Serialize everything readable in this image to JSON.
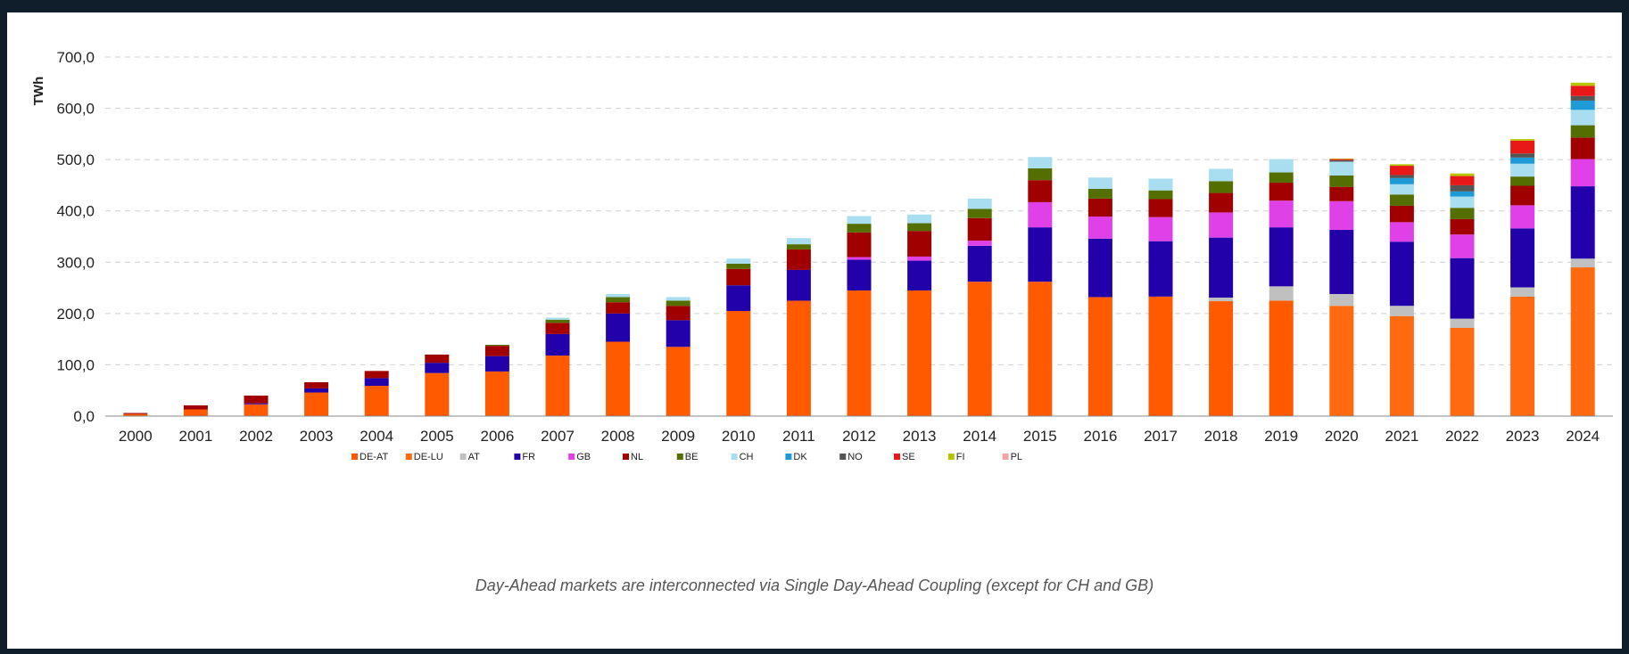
{
  "caption": "Day-Ahead markets are interconnected via Single Day-Ahead Coupling (except for CH and GB)",
  "chart_data": {
    "type": "bar",
    "stacked": true,
    "ylabel": "TWh",
    "ylim": [
      0,
      700
    ],
    "yticks": [
      "0,0",
      "100,0",
      "200,0",
      "300,0",
      "400,0",
      "500,0",
      "600,0",
      "700,0"
    ],
    "grid": true,
    "legend_position": "bottom",
    "categories": [
      "2000",
      "2001",
      "2002",
      "2003",
      "2004",
      "2005",
      "2006",
      "2007",
      "2008",
      "2009",
      "2010",
      "2011",
      "2012",
      "2013",
      "2014",
      "2015",
      "2016",
      "2017",
      "2018",
      "2019",
      "2020",
      "2021",
      "2022",
      "2023",
      "2024"
    ],
    "series": [
      {
        "name": "DE-AT",
        "color": "#ff5a00",
        "values": [
          4,
          13,
          23,
          46,
          59,
          84,
          87,
          118,
          145,
          135,
          205,
          225,
          245,
          245,
          262,
          262,
          232,
          233,
          224,
          225,
          0,
          0,
          0,
          0,
          0
        ]
      },
      {
        "name": "DE-LU",
        "color": "#ff6a10",
        "values": [
          0,
          0,
          0,
          0,
          0,
          0,
          0,
          0,
          0,
          0,
          0,
          0,
          0,
          0,
          0,
          0,
          0,
          0,
          0,
          0,
          215,
          195,
          172,
          233,
          290
        ]
      },
      {
        "name": "AT",
        "color": "#c0c0c0",
        "values": [
          0,
          0,
          0,
          0,
          0,
          0,
          0,
          0,
          0,
          0,
          0,
          0,
          0,
          0,
          0,
          0,
          0,
          0,
          7,
          28,
          23,
          20,
          18,
          18,
          17
        ]
      },
      {
        "name": "FR",
        "color": "#2200aa",
        "values": [
          0,
          0,
          2,
          8,
          15,
          20,
          30,
          42,
          55,
          52,
          50,
          60,
          60,
          58,
          70,
          106,
          114,
          108,
          117,
          115,
          125,
          125,
          118,
          115,
          141
        ]
      },
      {
        "name": "GB",
        "color": "#e040e8",
        "values": [
          0,
          0,
          0,
          0,
          0,
          0,
          0,
          0,
          0,
          0,
          0,
          0,
          5,
          8,
          10,
          49,
          43,
          47,
          49,
          52,
          56,
          38,
          46,
          45,
          53
        ]
      },
      {
        "name": "NL",
        "color": "#a00000",
        "values": [
          2,
          8,
          15,
          12,
          14,
          16,
          20,
          22,
          22,
          28,
          32,
          40,
          48,
          50,
          44,
          43,
          35,
          35,
          38,
          35,
          28,
          32,
          30,
          38,
          42
        ]
      },
      {
        "name": "BE",
        "color": "#546e00",
        "values": [
          0,
          0,
          0,
          0,
          0,
          0,
          2,
          6,
          10,
          10,
          10,
          10,
          17,
          15,
          18,
          23,
          19,
          17,
          23,
          20,
          22,
          22,
          22,
          18,
          24
        ]
      },
      {
        "name": "CH",
        "color": "#a8def0",
        "values": [
          0,
          0,
          0,
          0,
          0,
          0,
          0,
          4,
          6,
          7,
          10,
          12,
          15,
          17,
          20,
          22,
          22,
          23,
          24,
          26,
          27,
          20,
          22,
          25,
          30
        ]
      },
      {
        "name": "DK",
        "color": "#1e9ad6",
        "values": [
          0,
          0,
          0,
          0,
          0,
          0,
          0,
          0,
          0,
          0,
          0,
          0,
          0,
          0,
          0,
          0,
          0,
          0,
          0,
          0,
          0,
          12,
          10,
          12,
          18
        ]
      },
      {
        "name": "NO",
        "color": "#555555",
        "values": [
          0,
          0,
          0,
          0,
          0,
          0,
          0,
          0,
          0,
          0,
          0,
          0,
          0,
          0,
          0,
          0,
          0,
          0,
          0,
          0,
          3,
          6,
          12,
          8,
          9
        ]
      },
      {
        "name": "SE",
        "color": "#e81818",
        "values": [
          0,
          0,
          0,
          0,
          0,
          0,
          0,
          0,
          0,
          0,
          0,
          0,
          0,
          0,
          0,
          0,
          0,
          0,
          0,
          0,
          2,
          18,
          18,
          25,
          20
        ]
      },
      {
        "name": "FI",
        "color": "#b8c400",
        "values": [
          0,
          0,
          0,
          0,
          0,
          0,
          0,
          0,
          0,
          0,
          0,
          0,
          0,
          0,
          0,
          0,
          0,
          0,
          0,
          0,
          1,
          3,
          5,
          3,
          6
        ]
      },
      {
        "name": "PL",
        "color": "#f5a5a5",
        "values": [
          0,
          0,
          0,
          0,
          0,
          0,
          0,
          0,
          0,
          0,
          0,
          0,
          0,
          0,
          0,
          0,
          0,
          0,
          0,
          0,
          0,
          0,
          0,
          0,
          0
        ]
      }
    ]
  }
}
